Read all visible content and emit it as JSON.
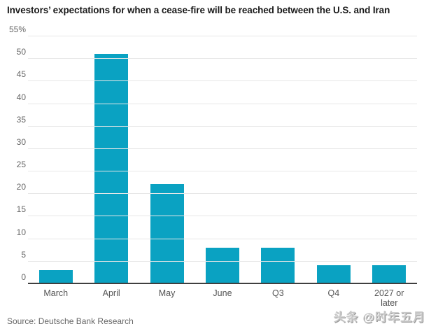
{
  "header": {
    "title": "Investors’ expectations for when a cease-fire will be reached between the U.S. and Iran"
  },
  "footer": {
    "source": "Source: Deutsche Bank Research",
    "watermark": "头条 @时年五月"
  },
  "colors": {
    "bar": "#0aa2c2",
    "grid": "#e7e7e7",
    "axis_line": "#3f3f3f",
    "tick_label": "#666666",
    "title": "#1a1a1a"
  },
  "chart_data": {
    "type": "bar",
    "title": "Investors’ expectations for when a cease-fire will be reached between the U.S. and Iran",
    "categories": [
      "March",
      "April",
      "May",
      "June",
      "Q3",
      "Q4",
      "2027 or later"
    ],
    "values": [
      3,
      51,
      22,
      8,
      8,
      4,
      4
    ],
    "unit": "%",
    "xlabel": "",
    "ylabel": "",
    "ylim": [
      0,
      55
    ],
    "ytick_step": 5,
    "ytick_labels": [
      "0",
      "5",
      "10",
      "15",
      "20",
      "25",
      "30",
      "35",
      "40",
      "45",
      "50",
      "55%"
    ],
    "grid": true,
    "legend": false,
    "source": "Source: Deutsche Bank Research"
  }
}
